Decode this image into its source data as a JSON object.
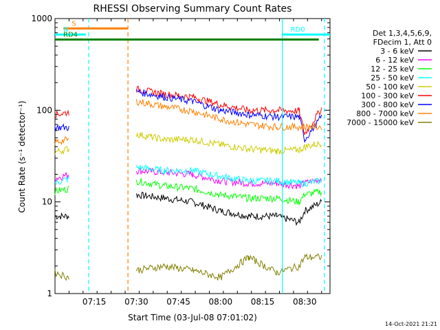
{
  "chart_data": {
    "type": "line",
    "title": "RHESSI Observing Summary Count Rates",
    "xlabel": "Start Time (03-Jul-08 07:01:02)",
    "ylabel": "Count Rate (s⁻¹ detector⁻¹)",
    "y_scale": "log",
    "ylim": [
      1,
      1000
    ],
    "xlim": [
      "07:01",
      "08:39"
    ],
    "x_ticks": [
      "07:15",
      "07:30",
      "07:45",
      "08:00",
      "08:15",
      "08:30"
    ],
    "y_ticks": [
      "1",
      "10",
      "100",
      "1000"
    ],
    "grid": false,
    "legend_position": "right",
    "legend_header": [
      "Det 1,3,4,5,6,9,",
      "FDecim 1, Att 0"
    ],
    "series": [
      {
        "name": "3 - 6 keV",
        "color": "#000000",
        "x": [
          "07:01",
          "07:06",
          "07:27",
          "07:30",
          "07:40",
          "07:50",
          "08:00",
          "08:10",
          "08:20",
          "08:28",
          "08:30",
          "08:36"
        ],
        "y": [
          7,
          7,
          null,
          12,
          11,
          10,
          8,
          7,
          7,
          6,
          8,
          10
        ]
      },
      {
        "name": "6 - 12 keV",
        "color": "#ff00ff",
        "x": [
          "07:01",
          "07:06",
          "07:27",
          "07:30",
          "07:40",
          "07:50",
          "08:00",
          "08:10",
          "08:20",
          "08:28",
          "08:30",
          "08:36"
        ],
        "y": [
          18,
          20,
          null,
          22,
          21,
          20,
          17,
          16,
          16,
          15,
          16,
          18
        ]
      },
      {
        "name": "12 - 25 keV",
        "color": "#00ff00",
        "x": [
          "07:01",
          "07:06",
          "07:27",
          "07:30",
          "07:40",
          "07:50",
          "08:00",
          "08:10",
          "08:20",
          "08:28",
          "08:30",
          "08:36"
        ],
        "y": [
          13,
          14,
          null,
          17,
          15,
          14,
          12,
          11,
          11,
          10,
          12,
          13
        ]
      },
      {
        "name": "25 - 50 keV",
        "color": "#00ffff",
        "x": [
          "07:01",
          "07:06",
          "07:27",
          "07:30",
          "07:40",
          "07:50",
          "08:00",
          "08:10",
          "08:20",
          "08:28",
          "08:30",
          "08:36"
        ],
        "y": [
          16,
          18,
          null,
          24,
          22,
          22,
          19,
          17,
          17,
          16,
          16,
          17
        ]
      },
      {
        "name": "50 - 100 keV",
        "color": "#cccc00",
        "x": [
          "07:01",
          "07:06",
          "07:27",
          "07:30",
          "07:40",
          "07:50",
          "08:00",
          "08:10",
          "08:20",
          "08:28",
          "08:30",
          "08:36"
        ],
        "y": [
          35,
          38,
          null,
          55,
          48,
          48,
          42,
          38,
          36,
          37,
          40,
          44
        ]
      },
      {
        "name": "100 - 300 keV",
        "color": "#ff0000",
        "x": [
          "07:01",
          "07:06",
          "07:27",
          "07:30",
          "07:40",
          "07:50",
          "08:00",
          "08:10",
          "08:20",
          "08:28",
          "08:30",
          "08:36"
        ],
        "y": [
          90,
          95,
          null,
          170,
          150,
          140,
          115,
          100,
          100,
          98,
          55,
          105
        ]
      },
      {
        "name": "300 - 800 keV",
        "color": "#0000ff",
        "x": [
          "07:01",
          "07:06",
          "07:27",
          "07:30",
          "07:40",
          "07:50",
          "08:00",
          "08:10",
          "08:20",
          "08:28",
          "08:30",
          "08:36"
        ],
        "y": [
          65,
          65,
          null,
          160,
          140,
          125,
          100,
          90,
          85,
          85,
          48,
          85
        ]
      },
      {
        "name": "800 - 7000 keV",
        "color": "#ff8000",
        "x": [
          "07:01",
          "07:06",
          "07:27",
          "07:30",
          "07:40",
          "07:50",
          "08:00",
          "08:10",
          "08:20",
          "08:28",
          "08:30",
          "08:36"
        ],
        "y": [
          45,
          48,
          null,
          125,
          110,
          98,
          80,
          70,
          66,
          66,
          66,
          66
        ]
      },
      {
        "name": "7000 - 15000 keV",
        "color": "#808000",
        "x": [
          "07:01",
          "07:06",
          "07:27",
          "07:30",
          "07:40",
          "07:50",
          "08:00",
          "08:10",
          "08:20",
          "08:28",
          "08:30",
          "08:36"
        ],
        "y": [
          1.7,
          1.5,
          null,
          1.8,
          2.0,
          1.8,
          1.5,
          2.5,
          1.7,
          2.0,
          2.5,
          2.5
        ]
      }
    ],
    "annotations": [
      {
        "label": "S",
        "color": "#ff8000",
        "x_start": "07:04",
        "x_end": "07:27",
        "y": 780
      },
      {
        "label": "N",
        "color": "#00ffff",
        "x_start": "07:01",
        "x_end": "07:12",
        "y": 670
      },
      {
        "label": "RD0",
        "color": "#00ffff",
        "x_start": "08:22",
        "x_end": "08:39",
        "y": 670
      },
      {
        "label": "RD4",
        "color": "#008000",
        "x_start": "07:01",
        "x_end": "08:35",
        "y": 590
      }
    ],
    "vertical_lines": [
      {
        "x": "07:13",
        "color": "#00ffff",
        "style": "dashed"
      },
      {
        "x": "07:27",
        "color": "#ff8000",
        "style": "dashed"
      },
      {
        "x": "08:22",
        "color": "#00ffff",
        "style": "solid"
      },
      {
        "x": "08:37",
        "color": "#00ffff",
        "style": "dashed"
      }
    ],
    "footer_date": "14-Oct-2021 21:21"
  }
}
